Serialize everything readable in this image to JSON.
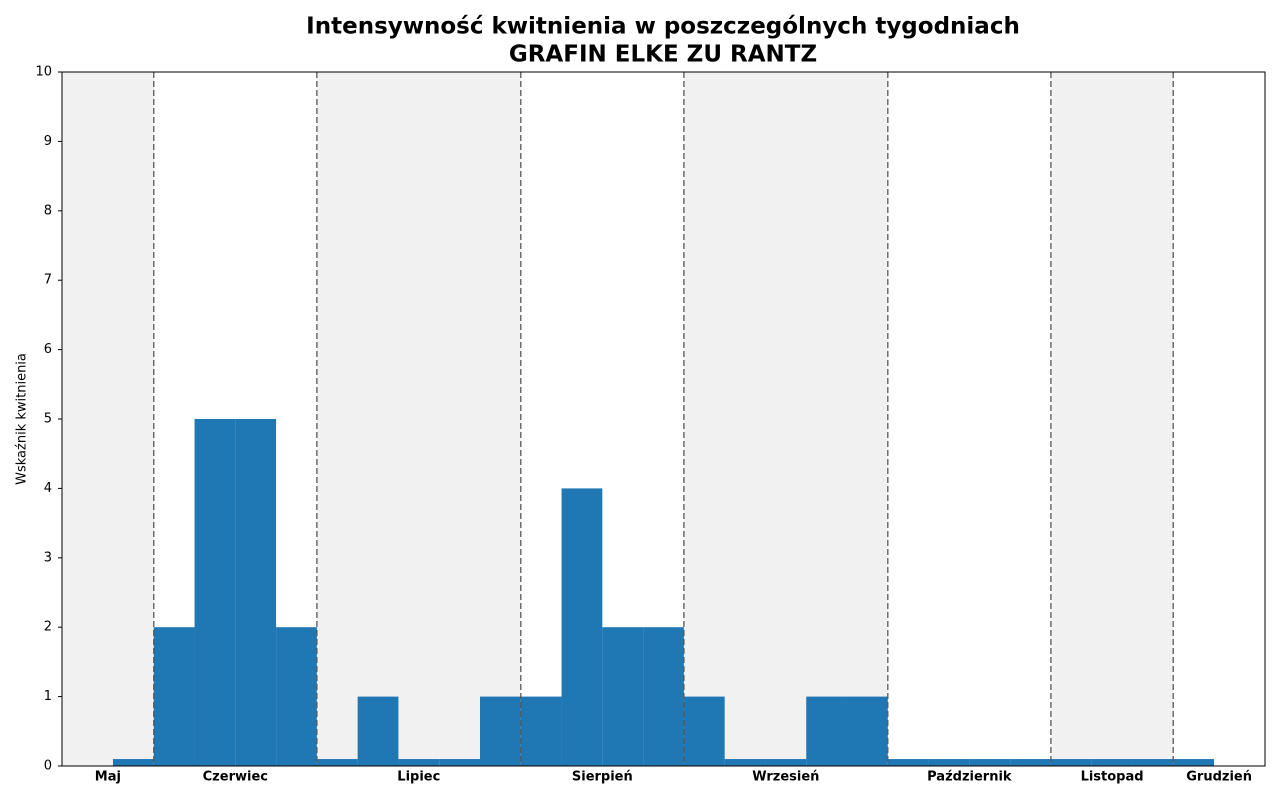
{
  "chart_data": {
    "type": "histogram",
    "title": "Intensywność kwitnienia w poszczególnych tygodniach",
    "subtitle": "GRAFIN ELKE ZU RANTZ",
    "y_label": "Wskaźnik kwitnienia",
    "bins": [
      0,
      1,
      2,
      3,
      4,
      5,
      6,
      7,
      8,
      9,
      10,
      11,
      12,
      13,
      14,
      15,
      16,
      17,
      18,
      19,
      20,
      21,
      22,
      23,
      24,
      25,
      26,
      27
    ],
    "values": [
      0.1,
      2,
      5,
      5,
      2,
      0.1,
      1,
      0.1,
      0.1,
      1,
      1,
      4,
      2,
      2,
      1,
      0.1,
      0.1,
      1,
      1,
      0.1,
      0.1,
      0.1,
      0.1,
      0.1,
      0.1,
      0.1,
      0.1
    ],
    "color": "#1f77b4",
    "xlim": [
      -1.25,
      28.25
    ],
    "ylim": [
      0,
      10
    ],
    "yticks": [
      0,
      1,
      2,
      3,
      4,
      5,
      6,
      7,
      8,
      9,
      10
    ],
    "months": [
      {
        "name": "Maj",
        "start": -1.25,
        "end": 1
      },
      {
        "name": "Czerwiec",
        "start": 1,
        "end": 5
      },
      {
        "name": "Lipiec",
        "start": 5,
        "end": 10
      },
      {
        "name": "Sierpień",
        "start": 10,
        "end": 14
      },
      {
        "name": "Wrzesień",
        "start": 14,
        "end": 19
      },
      {
        "name": "Październik",
        "start": 19,
        "end": 23
      },
      {
        "name": "Listopad",
        "start": 23,
        "end": 26
      },
      {
        "name": "Grudzień",
        "start": 26,
        "end": 28.25
      }
    ]
  }
}
